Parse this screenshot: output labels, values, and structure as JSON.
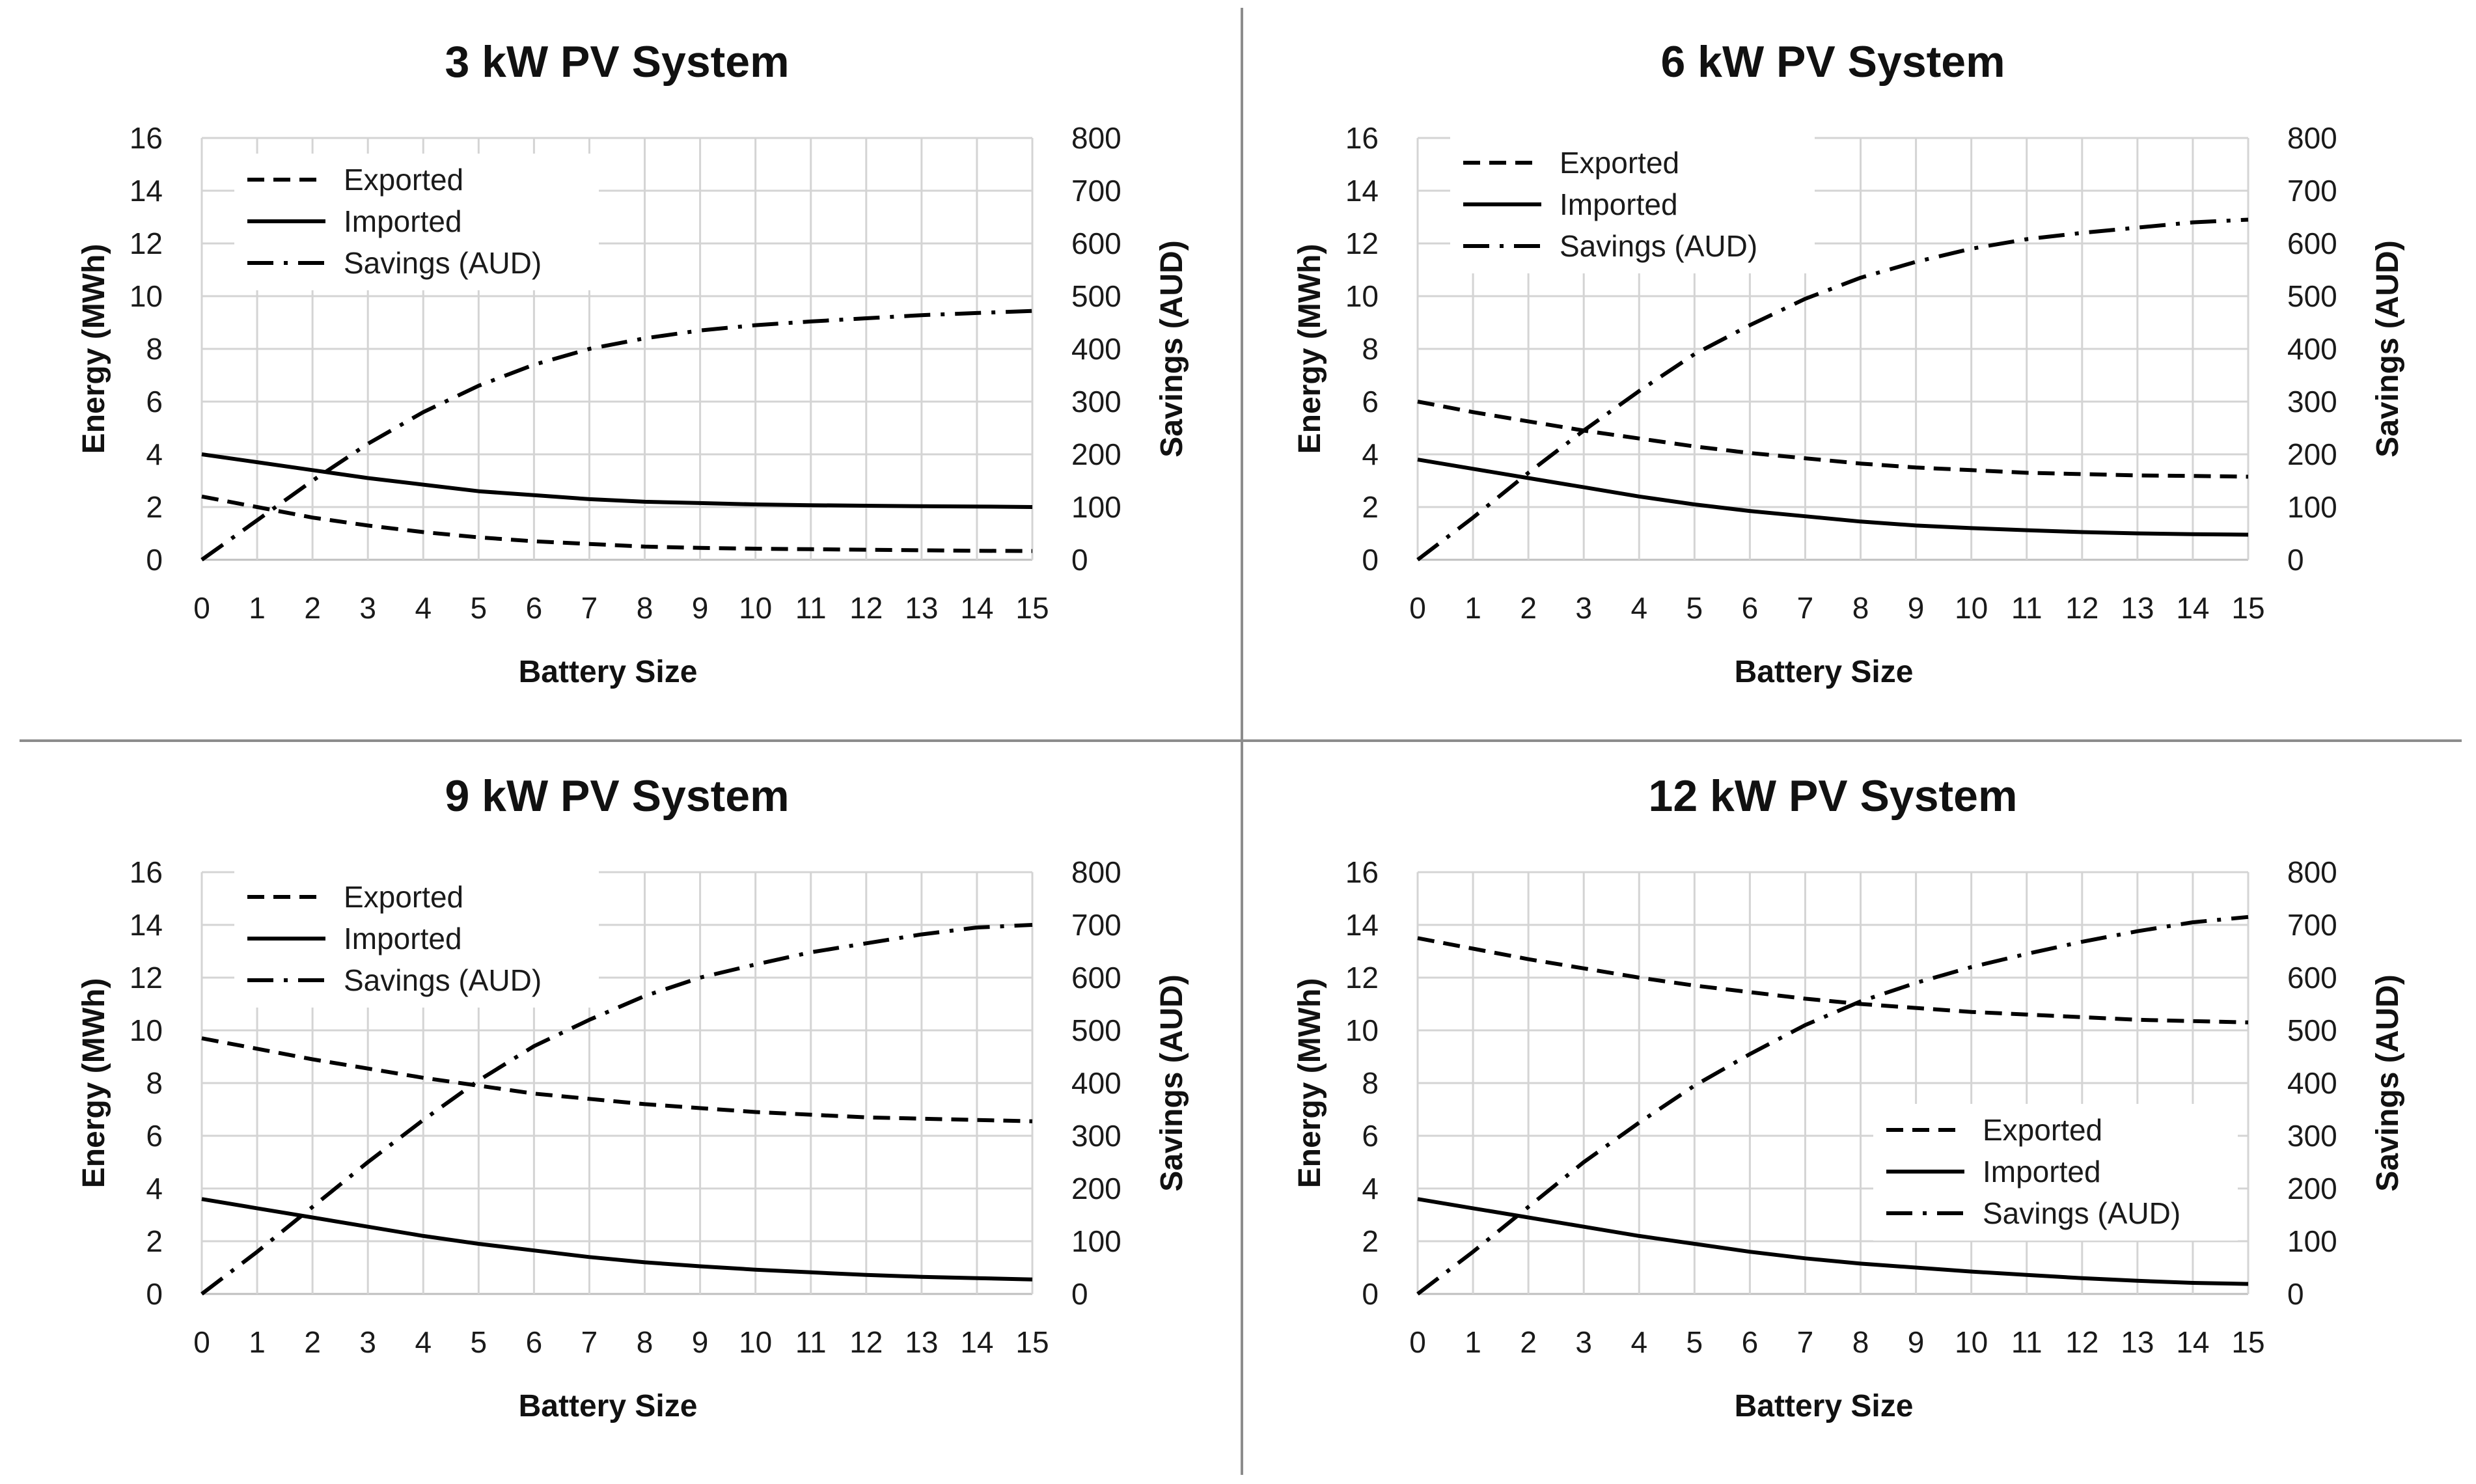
{
  "figure": {
    "background": "#ffffff",
    "line_color": "#000000"
  },
  "chart_data": [
    {
      "type": "line",
      "title": "3 kW PV System",
      "xlabel": "Battery Size",
      "ylabel": "Energy (MWh)",
      "y2label": "Savings (AUD)",
      "x": [
        0,
        1,
        2,
        3,
        4,
        5,
        6,
        7,
        8,
        9,
        10,
        11,
        12,
        13,
        14,
        15
      ],
      "ylim": [
        0,
        16
      ],
      "y2lim": [
        0,
        800
      ],
      "yticks": [
        0,
        2,
        4,
        6,
        8,
        10,
        12,
        14,
        16
      ],
      "y2ticks": [
        0,
        100,
        200,
        300,
        400,
        500,
        600,
        700,
        800
      ],
      "legend_position": "top-left",
      "series": [
        {
          "name": "Exported",
          "axis": "left",
          "style": "dashed",
          "values": [
            2.4,
            2.0,
            1.6,
            1.3,
            1.05,
            0.85,
            0.7,
            0.6,
            0.5,
            0.45,
            0.42,
            0.4,
            0.38,
            0.36,
            0.34,
            0.33
          ]
        },
        {
          "name": "Imported",
          "axis": "left",
          "style": "solid",
          "values": [
            4.0,
            3.7,
            3.4,
            3.1,
            2.85,
            2.6,
            2.45,
            2.3,
            2.2,
            2.15,
            2.1,
            2.07,
            2.05,
            2.03,
            2.02,
            2.0
          ]
        },
        {
          "name": "Savings (AUD)",
          "axis": "right",
          "style": "dashdot",
          "values": [
            0,
            75,
            150,
            220,
            280,
            330,
            370,
            400,
            420,
            435,
            445,
            452,
            458,
            464,
            468,
            472
          ]
        }
      ]
    },
    {
      "type": "line",
      "title": "6 kW PV System",
      "xlabel": "Battery Size",
      "ylabel": "Energy (MWh)",
      "y2label": "Savings (AUD)",
      "x": [
        0,
        1,
        2,
        3,
        4,
        5,
        6,
        7,
        8,
        9,
        10,
        11,
        12,
        13,
        14,
        15
      ],
      "ylim": [
        0,
        16
      ],
      "y2lim": [
        0,
        800
      ],
      "yticks": [
        0,
        2,
        4,
        6,
        8,
        10,
        12,
        14,
        16
      ],
      "y2ticks": [
        0,
        100,
        200,
        300,
        400,
        500,
        600,
        700,
        800
      ],
      "legend_position": "top-left",
      "series": [
        {
          "name": "Exported",
          "axis": "left",
          "style": "dashed",
          "values": [
            6.0,
            5.6,
            5.25,
            4.9,
            4.6,
            4.3,
            4.05,
            3.85,
            3.65,
            3.5,
            3.4,
            3.3,
            3.25,
            3.2,
            3.18,
            3.15
          ]
        },
        {
          "name": "Imported",
          "axis": "left",
          "style": "solid",
          "values": [
            3.8,
            3.45,
            3.1,
            2.75,
            2.4,
            2.1,
            1.85,
            1.65,
            1.45,
            1.3,
            1.2,
            1.12,
            1.05,
            1.0,
            0.97,
            0.95
          ]
        },
        {
          "name": "Savings (AUD)",
          "axis": "right",
          "style": "dashdot",
          "values": [
            0,
            80,
            165,
            245,
            320,
            390,
            445,
            495,
            535,
            565,
            590,
            608,
            620,
            630,
            640,
            645
          ]
        }
      ]
    },
    {
      "type": "line",
      "title": "9 kW PV System",
      "xlabel": "Battery Size",
      "ylabel": "Energy (MWh)",
      "y2label": "Savings (AUD)",
      "x": [
        0,
        1,
        2,
        3,
        4,
        5,
        6,
        7,
        8,
        9,
        10,
        11,
        12,
        13,
        14,
        15
      ],
      "ylim": [
        0,
        16
      ],
      "y2lim": [
        0,
        800
      ],
      "yticks": [
        0,
        2,
        4,
        6,
        8,
        10,
        12,
        14,
        16
      ],
      "y2ticks": [
        0,
        100,
        200,
        300,
        400,
        500,
        600,
        700,
        800
      ],
      "legend_position": "top-left",
      "series": [
        {
          "name": "Exported",
          "axis": "left",
          "style": "dashed",
          "values": [
            9.7,
            9.3,
            8.9,
            8.55,
            8.2,
            7.9,
            7.6,
            7.4,
            7.2,
            7.05,
            6.9,
            6.8,
            6.7,
            6.65,
            6.6,
            6.55
          ]
        },
        {
          "name": "Imported",
          "axis": "left",
          "style": "solid",
          "values": [
            3.6,
            3.25,
            2.9,
            2.55,
            2.2,
            1.9,
            1.65,
            1.4,
            1.2,
            1.05,
            0.92,
            0.82,
            0.72,
            0.65,
            0.6,
            0.55
          ]
        },
        {
          "name": "Savings (AUD)",
          "axis": "right",
          "style": "dashdot",
          "values": [
            0,
            80,
            165,
            250,
            330,
            405,
            470,
            520,
            565,
            600,
            625,
            648,
            665,
            682,
            695,
            700
          ]
        }
      ]
    },
    {
      "type": "line",
      "title": "12 kW PV System",
      "xlabel": "Battery Size",
      "ylabel": "Energy (MWh)",
      "y2label": "Savings (AUD)",
      "x": [
        0,
        1,
        2,
        3,
        4,
        5,
        6,
        7,
        8,
        9,
        10,
        11,
        12,
        13,
        14,
        15
      ],
      "ylim": [
        0,
        16
      ],
      "y2lim": [
        0,
        800
      ],
      "yticks": [
        0,
        2,
        4,
        6,
        8,
        10,
        12,
        14,
        16
      ],
      "y2ticks": [
        0,
        100,
        200,
        300,
        400,
        500,
        600,
        700,
        800
      ],
      "legend_position": "bottom-right",
      "series": [
        {
          "name": "Exported",
          "axis": "left",
          "style": "dashed",
          "values": [
            13.5,
            13.1,
            12.7,
            12.35,
            12.0,
            11.7,
            11.45,
            11.2,
            11.0,
            10.85,
            10.7,
            10.6,
            10.5,
            10.4,
            10.35,
            10.3
          ]
        },
        {
          "name": "Imported",
          "axis": "left",
          "style": "solid",
          "values": [
            3.6,
            3.25,
            2.9,
            2.55,
            2.2,
            1.9,
            1.6,
            1.35,
            1.15,
            1.0,
            0.85,
            0.72,
            0.6,
            0.5,
            0.42,
            0.38
          ]
        },
        {
          "name": "Savings (AUD)",
          "axis": "right",
          "style": "dashdot",
          "values": [
            0,
            80,
            165,
            250,
            325,
            395,
            455,
            510,
            555,
            590,
            620,
            645,
            668,
            688,
            705,
            715
          ]
        }
      ]
    }
  ]
}
